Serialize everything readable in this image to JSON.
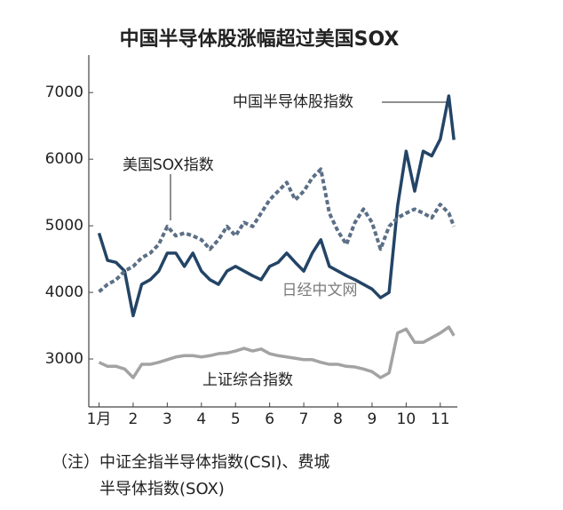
{
  "chart_data": {
    "type": "line",
    "title": "中国半导体股涨幅超过美国SOX",
    "x": [
      1,
      1.25,
      1.5,
      1.75,
      2,
      2.25,
      2.5,
      2.75,
      3,
      3.25,
      3.5,
      3.75,
      4,
      4.25,
      4.5,
      4.75,
      5,
      5.25,
      5.5,
      5.75,
      6,
      6.25,
      6.5,
      6.75,
      7,
      7.25,
      7.5,
      7.75,
      8,
      8.25,
      8.5,
      8.75,
      9,
      9.25,
      9.5,
      9.75,
      10,
      10.25,
      10.5,
      10.75,
      11,
      11.25,
      11.4
    ],
    "series": [
      {
        "name": "中国半导体股指数",
        "color": "#234466",
        "dash": false,
        "values": [
          4890,
          4480,
          4450,
          4320,
          3650,
          4120,
          4190,
          4320,
          4590,
          4590,
          4390,
          4590,
          4320,
          4190,
          4120,
          4320,
          4390,
          4320,
          4250,
          4190,
          4390,
          4450,
          4590,
          4450,
          4320,
          4590,
          4790,
          4390,
          4320,
          4250,
          4190,
          4120,
          4050,
          3920,
          4000,
          5300,
          6120,
          5520,
          6120,
          6050,
          6300,
          6950,
          6290
        ]
      },
      {
        "name": "美国SOX指数",
        "color": "#5b6f86",
        "dash": true,
        "values": [
          4010,
          4120,
          4190,
          4320,
          4390,
          4520,
          4590,
          4720,
          4990,
          4850,
          4890,
          4850,
          4790,
          4650,
          4790,
          4990,
          4850,
          5050,
          4990,
          5190,
          5390,
          5520,
          5650,
          5390,
          5520,
          5720,
          5850,
          5190,
          4920,
          4720,
          5050,
          5250,
          5050,
          4650,
          4990,
          5120,
          5190,
          5250,
          5190,
          5120,
          5320,
          5190,
          4990
        ]
      },
      {
        "name": "上证综合指数",
        "color": "#a3a3a3",
        "dash": false,
        "values": [
          2950,
          2890,
          2890,
          2850,
          2720,
          2920,
          2920,
          2950,
          2990,
          3030,
          3050,
          3050,
          3030,
          3050,
          3080,
          3090,
          3120,
          3160,
          3120,
          3150,
          3080,
          3050,
          3030,
          3010,
          2990,
          2990,
          2950,
          2920,
          2920,
          2890,
          2880,
          2850,
          2810,
          2720,
          2790,
          3390,
          3450,
          3250,
          3250,
          3320,
          3390,
          3480,
          3350
        ]
      }
    ],
    "xlim": [
      0.7,
      11.5
    ],
    "xticks": [
      {
        "value": 1,
        "label": "1月"
      },
      2,
      3,
      4,
      5,
      6,
      7,
      8,
      9,
      10,
      11
    ],
    "ylim": [
      2280,
      7790
    ],
    "yticks": [
      3000,
      4000,
      5000,
      6000,
      7000
    ],
    "grid": false,
    "watermark": "日经中文网",
    "note": [
      "（注）中证全指半导体指数(CSI)、费城",
      "半导体指数(SOX)"
    ]
  }
}
